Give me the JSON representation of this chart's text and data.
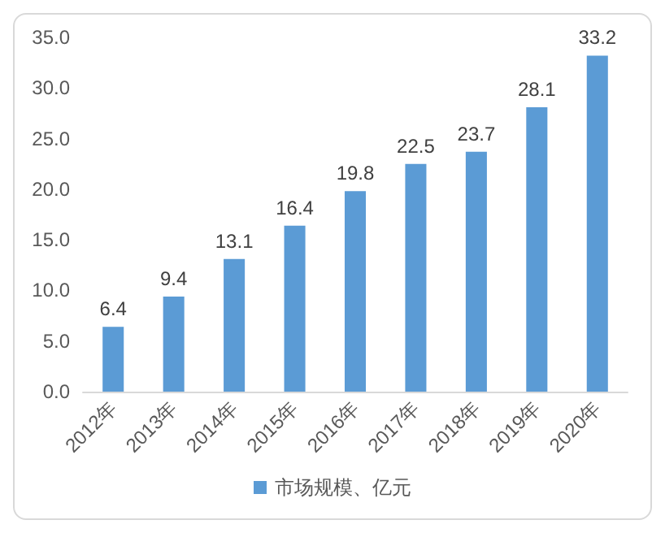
{
  "chart_data": {
    "type": "bar",
    "categories": [
      "2012年",
      "2013年",
      "2014年",
      "2015年",
      "2016年",
      "2017年",
      "2018年",
      "2019年",
      "2020年"
    ],
    "series": [
      {
        "name": "市场规模、亿元",
        "color": "#5b9bd5",
        "values": [
          6.4,
          9.4,
          13.1,
          16.4,
          19.8,
          22.5,
          23.7,
          28.1,
          33.2
        ]
      }
    ],
    "ylim": [
      0,
      35
    ],
    "yticks": [
      {
        "value": 0,
        "label": "0.0"
      },
      {
        "value": 5,
        "label": "5.0"
      },
      {
        "value": 10,
        "label": "10.0"
      },
      {
        "value": 15,
        "label": "15.0"
      },
      {
        "value": 20,
        "label": "20.0"
      },
      {
        "value": 25,
        "label": "25.0"
      },
      {
        "value": 30,
        "label": "30.0"
      },
      {
        "value": 35,
        "label": "35.0"
      }
    ],
    "data_labels": true,
    "grid": false,
    "legend": "bottom"
  }
}
